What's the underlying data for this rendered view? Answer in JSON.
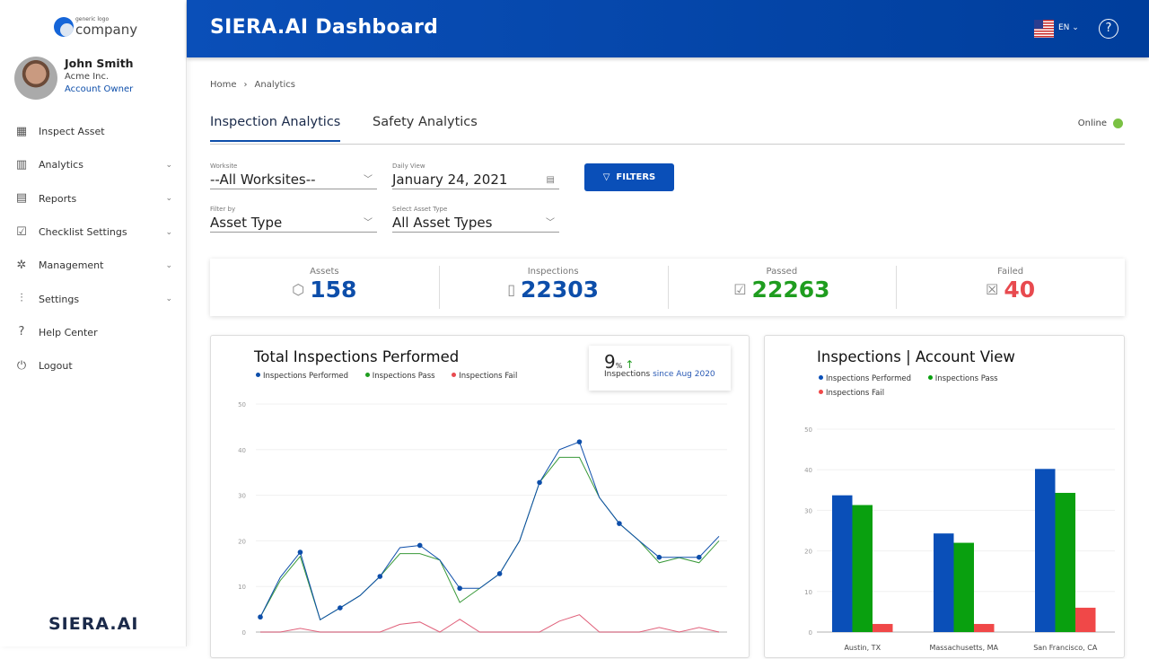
{
  "sidebar": {
    "logo": {
      "small": "generic logo",
      "big": "company"
    },
    "user": {
      "name": "John Smith",
      "company": "Acme Inc.",
      "role": "Account Owner"
    },
    "items": [
      {
        "label": "Inspect Asset",
        "icon": "qr-code-icon",
        "expandable": false
      },
      {
        "label": "Analytics",
        "icon": "bar-chart-icon",
        "expandable": true
      },
      {
        "label": "Reports",
        "icon": "reports-icon",
        "expandable": true
      },
      {
        "label": "Checklist Settings",
        "icon": "checklist-icon",
        "expandable": true
      },
      {
        "label": "Management",
        "icon": "network-icon",
        "expandable": true
      },
      {
        "label": "Settings",
        "icon": "sliders-icon",
        "expandable": true
      },
      {
        "label": "Help Center",
        "icon": "help-icon",
        "expandable": false
      },
      {
        "label": "Logout",
        "icon": "power-icon",
        "expandable": false
      }
    ],
    "brand": "SIERA.AI"
  },
  "header": {
    "title": "SIERA.AI Dashboard",
    "language": "EN",
    "help": "?"
  },
  "breadcrumb": {
    "home": "Home",
    "sep": "›",
    "current": "Analytics"
  },
  "tabs": [
    {
      "label": "Inspection Analytics",
      "active": true
    },
    {
      "label": "Safety Analytics",
      "active": false
    }
  ],
  "status": {
    "label": "Online",
    "color": "#7ac143"
  },
  "filters": {
    "worksite": {
      "label": "Worksite",
      "value": "--All Worksites--"
    },
    "daily": {
      "label": "Daily View",
      "value": "January 24, 2021"
    },
    "filter_by": {
      "label": "Filter by",
      "value": "Asset Type"
    },
    "asset_type": {
      "label": "Select Asset Type",
      "value": "All Asset Types"
    },
    "button": "FILTERS"
  },
  "stats": [
    {
      "label": "Assets",
      "value": "158",
      "color": "#0d4eaa",
      "icon": "cube-icon"
    },
    {
      "label": "Inspections",
      "value": "22303",
      "color": "#0d4eaa",
      "icon": "tablet-search-icon"
    },
    {
      "label": "Passed",
      "value": "22263",
      "color": "#1f9d1f",
      "icon": "tablet-check-icon"
    },
    {
      "label": "Failed",
      "value": "40",
      "color": "#e84a4f",
      "icon": "tablet-x-icon"
    }
  ],
  "kpi": {
    "value": "9",
    "unit": "%",
    "label": "Inspections",
    "since": "since Aug 2020"
  },
  "chart_data": [
    {
      "type": "line",
      "title": "Total Inspections Performed",
      "ylim": [
        0,
        50
      ],
      "yticks": [
        0,
        10,
        20,
        30,
        40,
        50
      ],
      "grid": true,
      "legend": "top-left",
      "series": [
        {
          "name": "Inspections Performed",
          "color": "#0d4eaa",
          "values": [
            3.3,
            12,
            17.5,
            2.7,
            5.3,
            8,
            12.2,
            18.5,
            19,
            15.8,
            9.6,
            9.6,
            12.8,
            20,
            32.8,
            40,
            41.7,
            29.5,
            23.8,
            20,
            16.4,
            16.4,
            16.4,
            21
          ]
        },
        {
          "name": "Inspections Pass",
          "color": "#3a9a3a",
          "values": [
            3.3,
            11.3,
            16.6,
            2.7,
            5.3,
            8,
            12.2,
            17.2,
            17.2,
            15.8,
            6.5,
            9.6,
            12.8,
            20,
            32.8,
            38.3,
            38.3,
            29.5,
            23.8,
            20,
            15.2,
            16.3,
            15.2,
            20
          ]
        },
        {
          "name": "Inspections Fail",
          "color": "#e0607a",
          "values": [
            0,
            0,
            0.8,
            0,
            0,
            0,
            0,
            1.7,
            2.2,
            0,
            2.8,
            0,
            0,
            0,
            0,
            2.4,
            3.8,
            0,
            0,
            0,
            1,
            0,
            1,
            0
          ]
        }
      ]
    },
    {
      "type": "bar",
      "title": "Inspections | Account View",
      "ylim": [
        0,
        50
      ],
      "yticks": [
        0,
        10,
        20,
        30,
        40,
        50
      ],
      "grid": true,
      "legend": "top-left",
      "categories": [
        "Austin, TX",
        "Massachusetts, MA",
        "San Francisco, CA"
      ],
      "series": [
        {
          "name": "Inspections Performed",
          "color": "#0a4fb8",
          "values": [
            33.7,
            24.3,
            40.2
          ]
        },
        {
          "name": "Inspections Pass",
          "color": "#09a00f",
          "values": [
            31.3,
            22,
            34.3
          ]
        },
        {
          "name": "Inspections Fail",
          "color": "#f04848",
          "values": [
            2,
            2,
            6
          ]
        }
      ]
    }
  ]
}
